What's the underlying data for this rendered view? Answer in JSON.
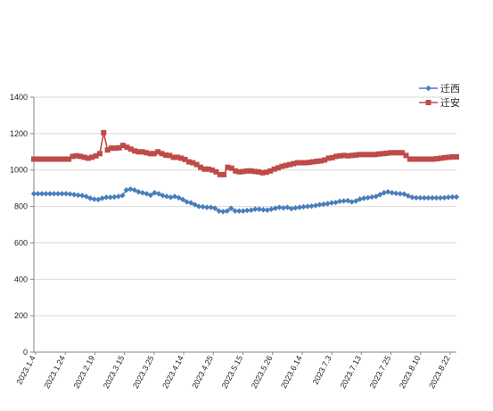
{
  "chart_data": {
    "type": "line",
    "title": "",
    "xlabel": "",
    "ylabel": "",
    "ylim": [
      0,
      1400
    ],
    "yticks": [
      0,
      200,
      400,
      600,
      800,
      1000,
      1200,
      1400
    ],
    "x_tick_labels": [
      "2023.1.4",
      "2023.1.24",
      "2023.2.19",
      "2023.3.15",
      "2023.3.25",
      "2023.4.14",
      "2023.4.25",
      "2023.5.15",
      "2023.5.26",
      "2023.6.14",
      "2023.7.3",
      "2023.7.13",
      "2023.7.25",
      "2023.8.10",
      "2023.8.22"
    ],
    "grid": "horizontal",
    "legend_position": "top-right",
    "series": [
      {
        "name": "迁西",
        "color": "#4a7ebb",
        "marker": "diamond",
        "values": [
          870,
          870,
          870,
          870,
          870,
          870,
          870,
          870,
          870,
          868,
          865,
          862,
          860,
          855,
          845,
          840,
          838,
          845,
          850,
          850,
          852,
          855,
          860,
          890,
          895,
          890,
          880,
          875,
          870,
          862,
          875,
          870,
          860,
          855,
          850,
          855,
          848,
          838,
          825,
          820,
          810,
          800,
          798,
          795,
          795,
          790,
          775,
          772,
          775,
          790,
          775,
          775,
          775,
          778,
          780,
          785,
          785,
          782,
          780,
          785,
          790,
          795,
          792,
          795,
          788,
          792,
          795,
          798,
          800,
          802,
          805,
          810,
          812,
          815,
          820,
          822,
          828,
          830,
          832,
          825,
          830,
          840,
          845,
          848,
          852,
          855,
          865,
          875,
          880,
          875,
          872,
          870,
          868,
          858,
          850,
          848,
          847,
          847,
          847,
          847,
          847,
          847,
          848,
          850,
          852,
          852
        ]
      },
      {
        "name": "迁安",
        "color": "#be4b48",
        "marker": "square",
        "values": [
          1060,
          1060,
          1060,
          1060,
          1060,
          1060,
          1060,
          1060,
          1060,
          1060,
          1075,
          1078,
          1075,
          1070,
          1065,
          1070,
          1078,
          1090,
          1205,
          1110,
          1120,
          1120,
          1122,
          1135,
          1125,
          1115,
          1105,
          1100,
          1100,
          1095,
          1090,
          1090,
          1100,
          1090,
          1082,
          1080,
          1070,
          1070,
          1065,
          1058,
          1045,
          1040,
          1030,
          1015,
          1005,
          1005,
          1000,
          990,
          975,
          975,
          1015,
          1010,
          995,
          990,
          992,
          995,
          995,
          992,
          990,
          985,
          988,
          995,
          1005,
          1012,
          1020,
          1025,
          1030,
          1035,
          1040,
          1040,
          1040,
          1042,
          1045,
          1048,
          1050,
          1055,
          1065,
          1068,
          1075,
          1078,
          1080,
          1078,
          1080,
          1082,
          1085,
          1085,
          1085,
          1085,
          1085,
          1088,
          1090,
          1092,
          1095,
          1095,
          1095,
          1095,
          1080,
          1060,
          1060,
          1060,
          1060,
          1060,
          1060,
          1060,
          1062,
          1065,
          1068,
          1070,
          1072,
          1072
        ]
      }
    ]
  }
}
